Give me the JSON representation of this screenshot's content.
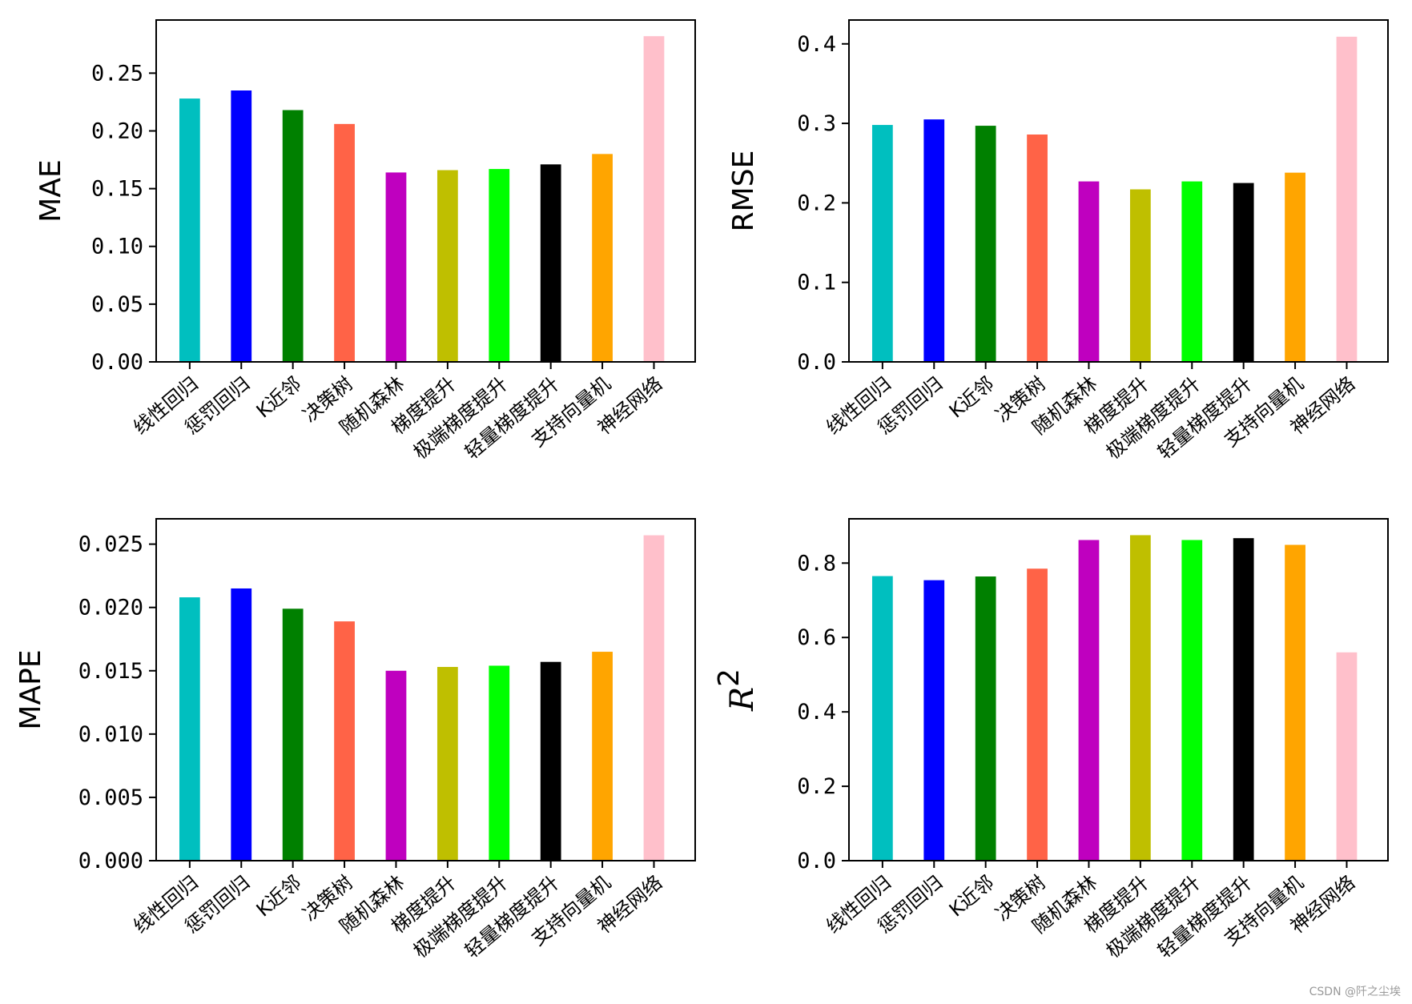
{
  "chart_data": [
    {
      "type": "bar",
      "ylabel": "MAE",
      "categories": [
        "线性回归",
        "惩罚回归",
        "K近邻",
        "决策树",
        "随机森林",
        "梯度提升",
        "极端梯度提升",
        "轻量梯度提升",
        "支持向量机",
        "神经网络"
      ],
      "values": [
        0.228,
        0.235,
        0.218,
        0.206,
        0.164,
        0.166,
        0.167,
        0.171,
        0.18,
        0.282
      ],
      "ylim": [
        0,
        0.296
      ],
      "yticks": [
        0.0,
        0.05,
        0.1,
        0.15,
        0.2,
        0.25
      ],
      "ytick_labels": [
        "0.00",
        "0.05",
        "0.10",
        "0.15",
        "0.20",
        "0.25"
      ]
    },
    {
      "type": "bar",
      "ylabel": "RMSE",
      "categories": [
        "线性回归",
        "惩罚回归",
        "K近邻",
        "决策树",
        "随机森林",
        "梯度提升",
        "极端梯度提升",
        "轻量梯度提升",
        "支持向量机",
        "神经网络"
      ],
      "values": [
        0.298,
        0.305,
        0.297,
        0.286,
        0.227,
        0.217,
        0.227,
        0.225,
        0.238,
        0.409
      ],
      "ylim": [
        0,
        0.43
      ],
      "yticks": [
        0.0,
        0.1,
        0.2,
        0.3,
        0.4
      ],
      "ytick_labels": [
        "0.0",
        "0.1",
        "0.2",
        "0.3",
        "0.4"
      ]
    },
    {
      "type": "bar",
      "ylabel": "MAPE",
      "categories": [
        "线性回归",
        "惩罚回归",
        "K近邻",
        "决策树",
        "随机森林",
        "梯度提升",
        "极端梯度提升",
        "轻量梯度提升",
        "支持向量机",
        "神经网络"
      ],
      "values": [
        0.0208,
        0.0215,
        0.0199,
        0.0189,
        0.015,
        0.0153,
        0.0154,
        0.0157,
        0.0165,
        0.0257
      ],
      "ylim": [
        0,
        0.027
      ],
      "yticks": [
        0.0,
        0.005,
        0.01,
        0.015,
        0.02,
        0.025
      ],
      "ytick_labels": [
        "0.000",
        "0.005",
        "0.010",
        "0.015",
        "0.020",
        "0.025"
      ]
    },
    {
      "type": "bar",
      "ylabel": "R",
      "ylabel_superscript": "2",
      "categories": [
        "线性回归",
        "惩罚回归",
        "K近邻",
        "决策树",
        "随机森林",
        "梯度提升",
        "极端梯度提升",
        "轻量梯度提升",
        "支持向量机",
        "神经网络"
      ],
      "values": [
        0.765,
        0.754,
        0.764,
        0.785,
        0.862,
        0.875,
        0.862,
        0.867,
        0.849,
        0.56
      ],
      "ylim": [
        0,
        0.919
      ],
      "yticks": [
        0.0,
        0.2,
        0.4,
        0.6,
        0.8
      ],
      "ytick_labels": [
        "0.0",
        "0.2",
        "0.4",
        "0.6",
        "0.8"
      ]
    }
  ],
  "colors": [
    "#00bfbf",
    "#0000ff",
    "#008000",
    "#ff6347",
    "#bf00bf",
    "#bfbf00",
    "#00ff00",
    "#000000",
    "#ffa500",
    "#ffc0cb"
  ],
  "watermark": "CSDN @阡之尘埃"
}
